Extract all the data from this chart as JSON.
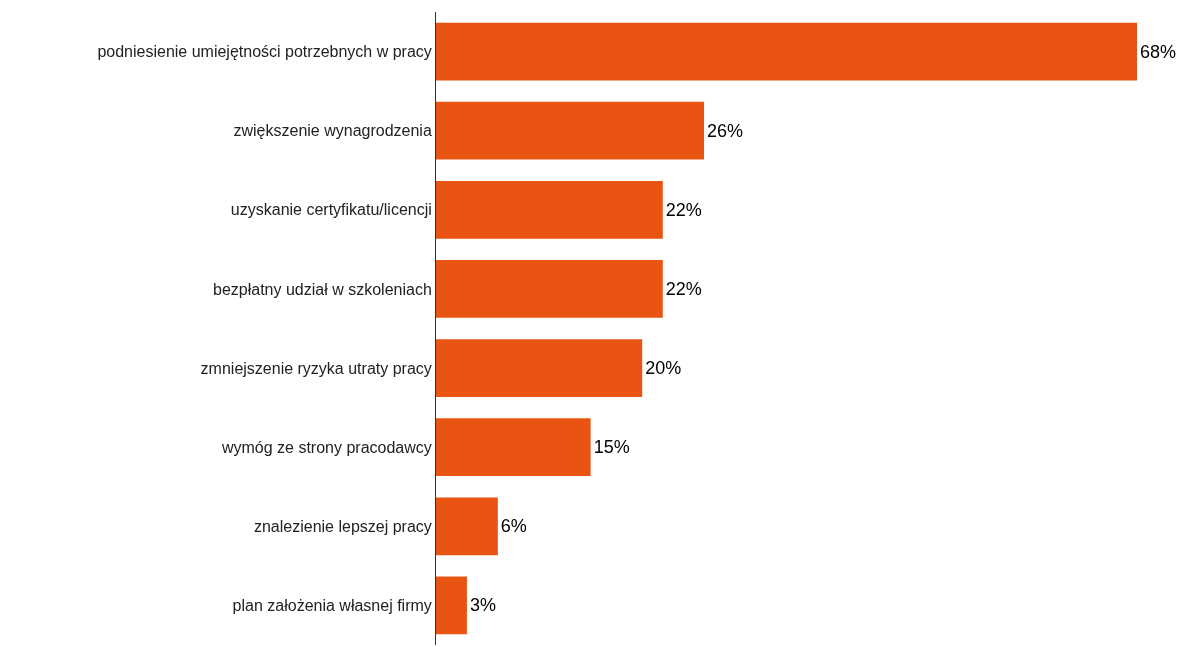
{
  "chart_data": {
    "type": "bar",
    "orientation": "horizontal",
    "categories": [
      "podniesienie umiejętności potrzebnych w pracy",
      "zwiększenie wynagrodzenia",
      "uzyskanie certyfikatu/licencji",
      "bezpłatny udział w szkoleniach",
      "zmniejszenie ryzyka utraty pracy",
      "wymóg ze strony pracodawcy",
      "znalezienie lepszej pracy",
      "plan założenia własnej firmy"
    ],
    "values": [
      68,
      26,
      22,
      22,
      20,
      15,
      6,
      3
    ],
    "value_labels": [
      "68%",
      "26%",
      "22%",
      "22%",
      "20%",
      "15%",
      "6%",
      "3%"
    ],
    "color": "#e95412",
    "xlim": [
      0,
      68
    ],
    "tick_labels": "y"
  }
}
